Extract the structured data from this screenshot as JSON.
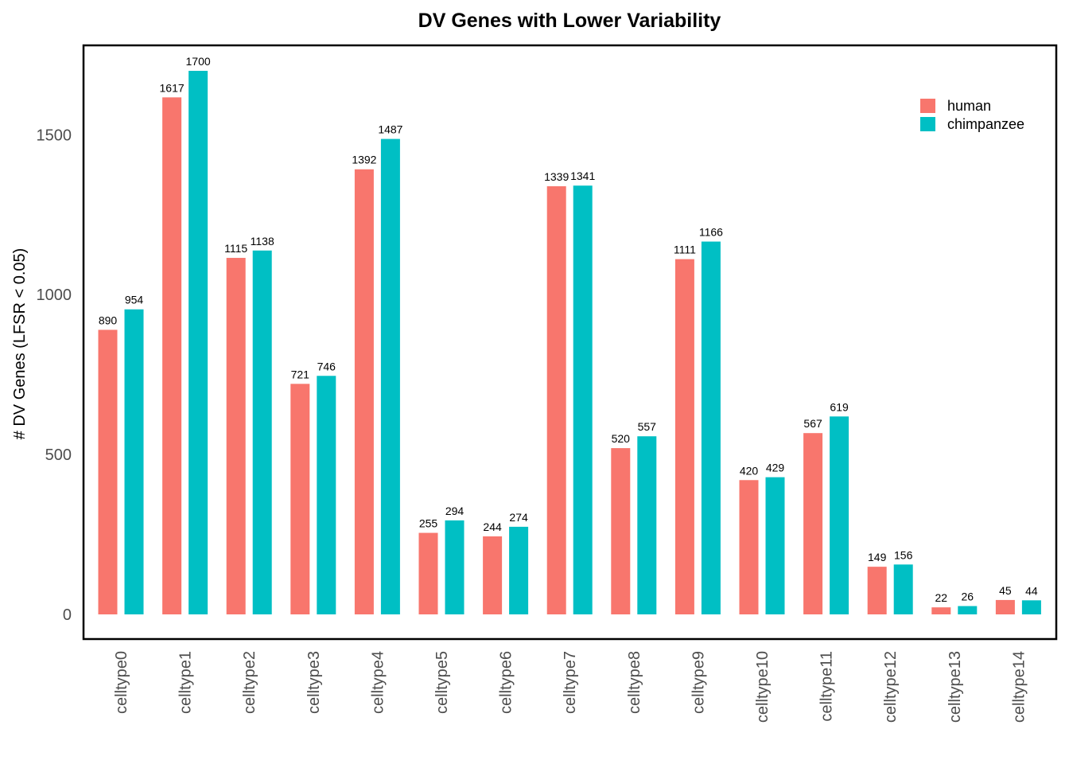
{
  "chart_data": {
    "type": "bar",
    "title": "DV Genes with Lower Variability",
    "xlabel": "",
    "ylabel": "# DV Genes (LFSR < 0.05)",
    "ylim": [
      0,
      1700
    ],
    "yticks": [
      0,
      500,
      1000,
      1500
    ],
    "grid": false,
    "legend_position": "top-right",
    "categories": [
      "celltype0",
      "celltype1",
      "celltype2",
      "celltype3",
      "celltype4",
      "celltype5",
      "celltype6",
      "celltype7",
      "celltype8",
      "celltype9",
      "celltype10",
      "celltype11",
      "celltype12",
      "celltype13",
      "celltype14"
    ],
    "series": [
      {
        "name": "human",
        "color": "#F8766D",
        "values": [
          890,
          1617,
          1115,
          721,
          1392,
          255,
          244,
          1339,
          520,
          1111,
          420,
          567,
          149,
          22,
          45
        ]
      },
      {
        "name": "chimpanzee",
        "color": "#00BFC4",
        "values": [
          954,
          1700,
          1138,
          746,
          1487,
          294,
          274,
          1341,
          557,
          1166,
          429,
          619,
          156,
          26,
          44
        ]
      }
    ]
  }
}
